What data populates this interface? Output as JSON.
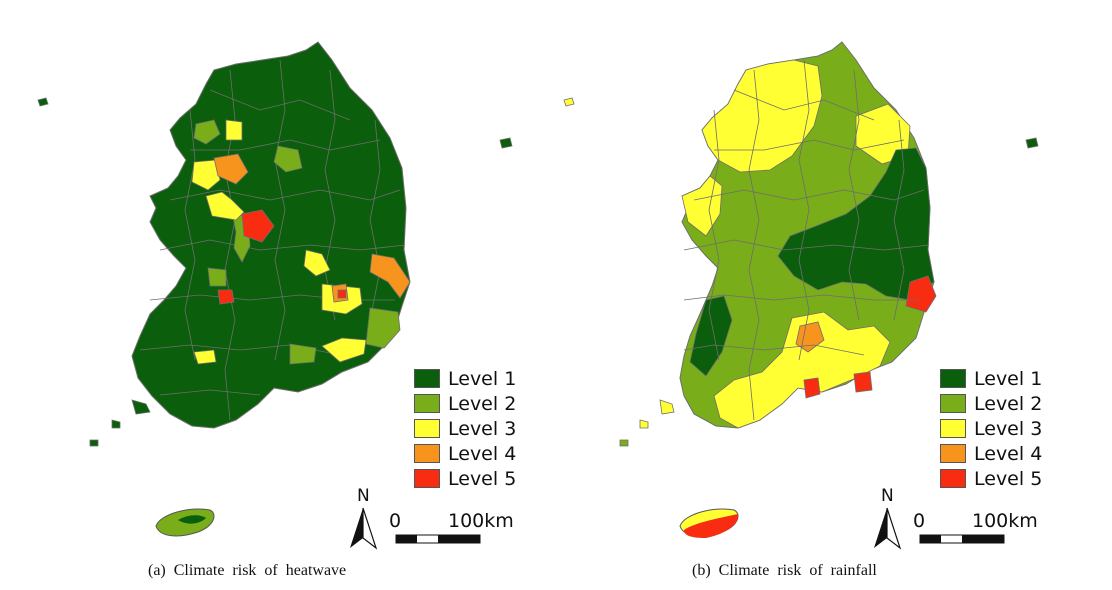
{
  "legend": {
    "levels": [
      {
        "label": "Level 1",
        "color": "#0b5e0b"
      },
      {
        "label": "Level 2",
        "color": "#7aad1a"
      },
      {
        "label": "Level 3",
        "color": "#ffff33"
      },
      {
        "label": "Level 4",
        "color": "#f7941d"
      },
      {
        "label": "Level 5",
        "color": "#f72c10"
      }
    ]
  },
  "compass": {
    "north_label": "N"
  },
  "scale_bar": {
    "start_label": "0",
    "end_label": "100km"
  },
  "panels": [
    {
      "caption": "(a)  Climate  risk  of  heatwave",
      "base_level": 1
    },
    {
      "caption": "(b)  Climate  risk  of  rainfall",
      "base_level": 2
    }
  ],
  "colors": {
    "border": "#6e6e6e",
    "background": "#ffffff"
  }
}
